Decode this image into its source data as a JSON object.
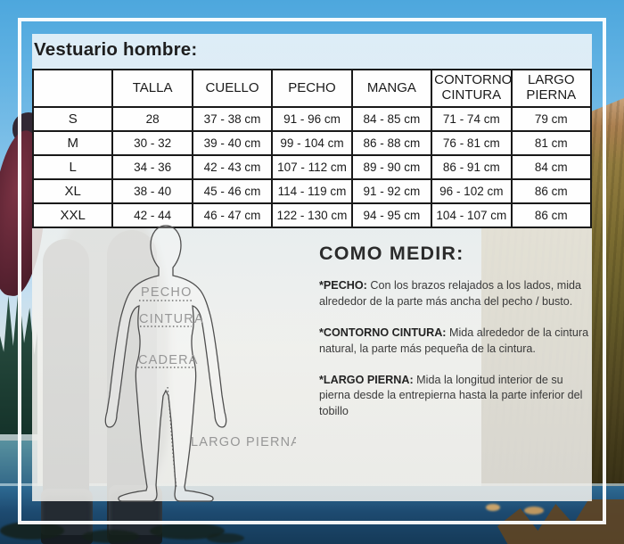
{
  "title": "Vestuario hombre:",
  "table": {
    "headers": [
      "",
      "TALLA",
      "CUELLO",
      "PECHO",
      "MANGA",
      "CONTORNO CINTURA",
      "LARGO PIERNA"
    ],
    "rows": [
      [
        "S",
        "28",
        "37 - 38 cm",
        "91 - 96 cm",
        "84 - 85 cm",
        "71 - 74 cm",
        "79 cm"
      ],
      [
        "M",
        "30 - 32",
        "39 - 40 cm",
        "99 - 104 cm",
        "86 - 88 cm",
        "76 - 81 cm",
        "81 cm"
      ],
      [
        "L",
        "34 - 36",
        "42 - 43 cm",
        "107 - 112 cm",
        "89 - 90 cm",
        "86 - 91 cm",
        "84 cm"
      ],
      [
        "XL",
        "38 - 40",
        "45 - 46 cm",
        "114 - 119 cm",
        "91 - 92 cm",
        "96 - 102 cm",
        "86 cm"
      ],
      [
        "XXL",
        "42 - 44",
        "46 - 47 cm",
        "122 - 130 cm",
        "94 - 95 cm",
        "104 - 107 cm",
        "86 cm"
      ]
    ]
  },
  "diagram": {
    "chest_label": "PECHO",
    "waist_label": "CINTURA",
    "hip_label": "CADERA",
    "leg_label": "LARGO PIERNA"
  },
  "how_to_measure": {
    "heading": "COMO MEDIR:",
    "items": [
      {
        "term": "*PECHO:",
        "text": "Con los brazos relajados a los lados, mida alrededor de la parte más ancha del pecho / busto."
      },
      {
        "term": "*CONTORNO CINTURA:",
        "text": "Mida alrededor de la cintura natural, la parte más pequeña de la cintura."
      },
      {
        "term": "*LARGO PIERNA:",
        "text": "Mida la longitud interior de su pierna desde la entrepierna hasta la parte inferior del tobillo"
      }
    ]
  },
  "colors": {
    "sky": "#55ade0",
    "water": "#1d4a70",
    "mountain": "#8d7a3d",
    "frame": "#ffffff",
    "table_border": "#191919",
    "label_gray": "#979797"
  }
}
